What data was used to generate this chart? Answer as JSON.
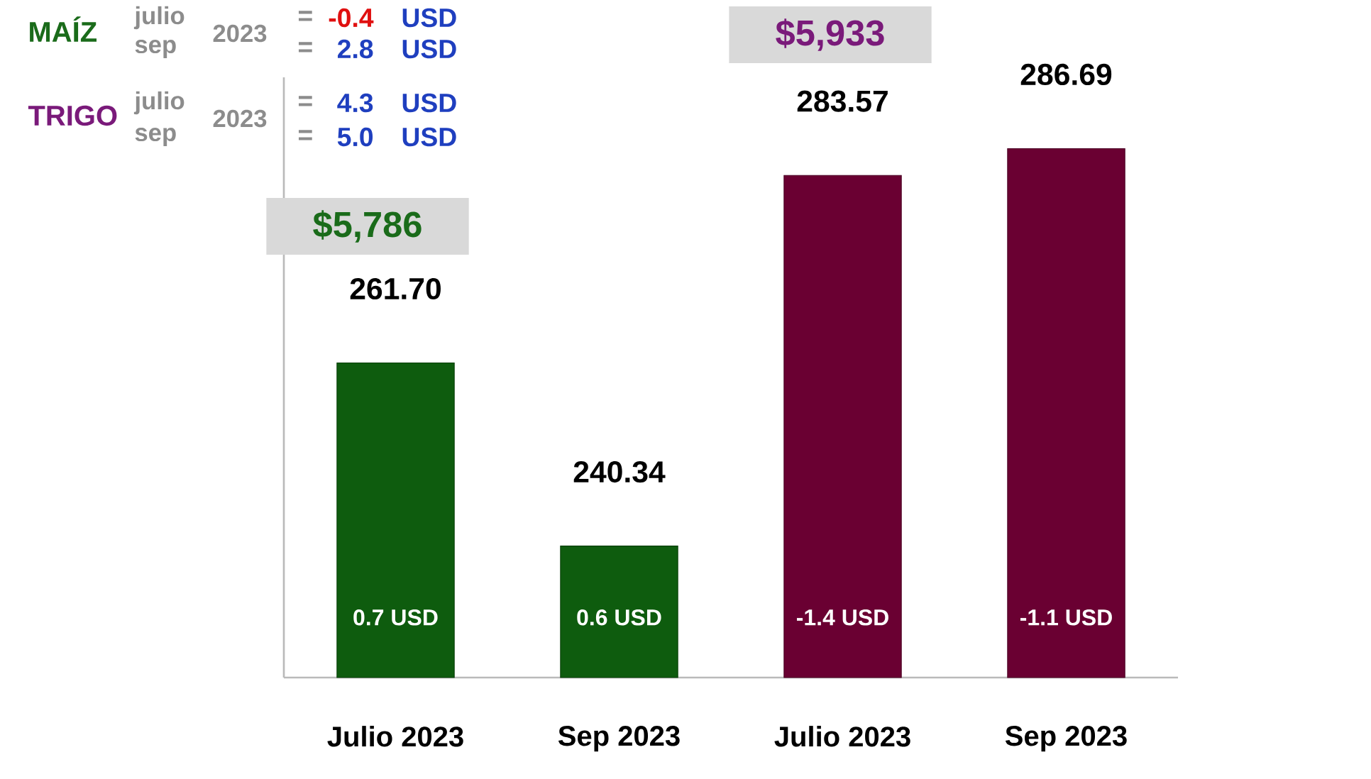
{
  "chart_data": {
    "type": "bar",
    "categories": [
      "Julio 2023",
      "Sep 2023",
      "Julio 2023",
      "Sep 2023"
    ],
    "values": [
      261.7,
      240.34,
      283.57,
      286.69
    ],
    "value_labels": [
      "261.70",
      "240.34",
      "283.57",
      "286.69"
    ],
    "colors": [
      "#0e5c0e",
      "#0e5c0e",
      "#6a0032",
      "#6a0032"
    ],
    "ylim": [
      225,
      295
    ],
    "annotations": [
      "MAÍZ",
      "julio",
      "sep",
      "2023",
      "=",
      "-0.4",
      "USD",
      "=",
      "2.8",
      "USD",
      "TRIGO",
      "julio",
      "sep",
      "2023",
      "=",
      "4.3",
      "USD",
      "=",
      "5.0",
      "USD",
      "$5,786",
      "$5,933",
      "0.7 USD",
      "0.6 USD",
      "-1.4 USD",
      "-1.1 USD"
    ]
  }
}
